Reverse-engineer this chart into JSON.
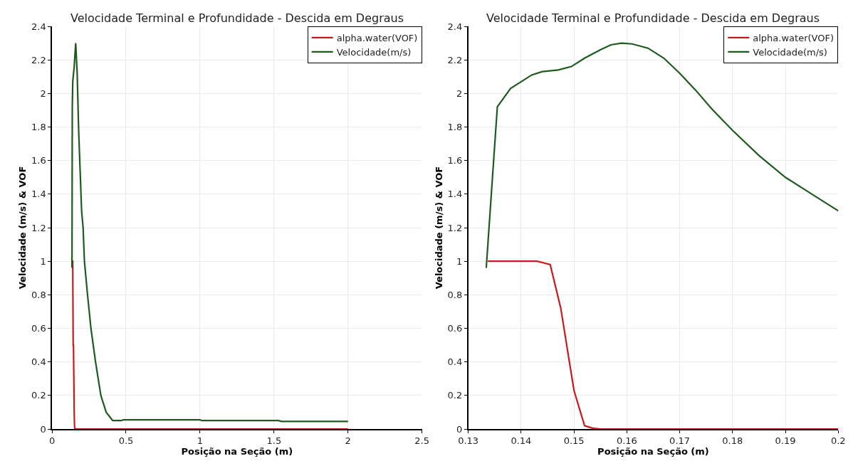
{
  "chart_data": [
    {
      "type": "line",
      "title": "Velocidade Terminal e Profundidade - Descida em Degraus",
      "xlabel": "Posição na Seção (m)",
      "ylabel": "Velocidade (m/s) & VOF",
      "xlim": [
        0,
        2.5
      ],
      "ylim": [
        0,
        2.4
      ],
      "xticks": [
        0,
        0.5,
        1,
        1.5,
        2,
        2.5
      ],
      "yticks": [
        0,
        0.2,
        0.4,
        0.6,
        0.8,
        1,
        1.2,
        1.4,
        1.6,
        1.8,
        2,
        2.2,
        2.4
      ],
      "grid": true,
      "legend": "top right",
      "line_style": "solid",
      "series": [
        {
          "name": "alpha.water(VOF)",
          "color": "#c8191e",
          "x": [
            0.138,
            0.14,
            0.143,
            0.145,
            0.1475,
            0.15,
            0.152,
            0.155,
            2.0
          ],
          "values": [
            1.0,
            1.0,
            0.5,
            0.5,
            0.3,
            0.1,
            0.02,
            0,
            0
          ]
        },
        {
          "name": "Velocidade(m/s)",
          "color": "#1e5a1e",
          "x": [
            0.135,
            0.137,
            0.14,
            0.15,
            0.16,
            0.17,
            0.18,
            0.2,
            0.21,
            0.219,
            0.24,
            0.263,
            0.294,
            0.33,
            0.366,
            0.41,
            0.47,
            0.48,
            1.0,
            1.01,
            1.53,
            1.55,
            2.0
          ],
          "values": [
            0.96,
            1.92,
            2.07,
            2.16,
            2.3,
            2.12,
            1.78,
            1.3,
            1.2,
            1.0,
            0.8,
            0.6,
            0.4,
            0.2,
            0.1,
            0.05,
            0.05,
            0.055,
            0.055,
            0.05,
            0.05,
            0.045,
            0.045
          ]
        }
      ]
    },
    {
      "type": "line",
      "title": "Velocidade Terminal e Profundidade - Descida em Degraus",
      "xlabel": "Posição na Seção (m)",
      "ylabel": "Velocidade (m/s) & VOF",
      "xlim": [
        0.13,
        0.2
      ],
      "ylim": [
        0,
        2.4
      ],
      "xticks": [
        0.13,
        0.14,
        0.15,
        0.16,
        0.17,
        0.18,
        0.19,
        0.2
      ],
      "yticks": [
        0,
        0.2,
        0.4,
        0.6,
        0.8,
        1,
        1.2,
        1.4,
        1.6,
        1.8,
        2,
        2.2,
        2.4
      ],
      "grid": true,
      "legend": "top right",
      "line_style": "solid",
      "series": [
        {
          "name": "alpha.water(VOF)",
          "color": "#c8191e",
          "x": [
            0.1337,
            0.143,
            0.1455,
            0.1475,
            0.15,
            0.152,
            0.1535,
            0.155,
            0.2
          ],
          "values": [
            1.0,
            1.0,
            0.98,
            0.72,
            0.23,
            0.02,
            0.005,
            0,
            0
          ]
        },
        {
          "name": "Velocidade(m/s)",
          "color": "#1e5a1e",
          "x": [
            0.1334,
            0.1355,
            0.138,
            0.14,
            0.142,
            0.144,
            0.147,
            0.1495,
            0.152,
            0.155,
            0.157,
            0.159,
            0.161,
            0.164,
            0.167,
            0.17,
            0.173,
            0.176,
            0.18,
            0.185,
            0.19,
            0.195,
            0.2
          ],
          "values": [
            0.96,
            1.92,
            2.03,
            2.07,
            2.11,
            2.13,
            2.14,
            2.16,
            2.21,
            2.26,
            2.29,
            2.3,
            2.295,
            2.27,
            2.21,
            2.12,
            2.02,
            1.91,
            1.78,
            1.63,
            1.5,
            1.4,
            1.3
          ]
        }
      ]
    }
  ]
}
